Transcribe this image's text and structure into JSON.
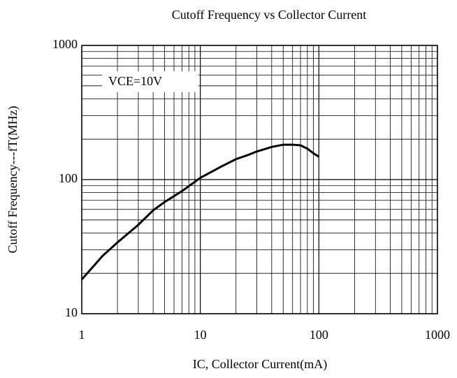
{
  "chart_data": {
    "type": "line",
    "title": "Cutoff Frequency vs Collector Current",
    "xlabel": "IC, Collector Current(mA)",
    "ylabel": "Cutoff Frequency---fT(MHz)",
    "annotation": "VCE=10V",
    "xscale": "log",
    "yscale": "log",
    "grid": true,
    "minor_grid": true,
    "xlim": [
      1,
      1000
    ],
    "ylim": [
      10,
      1000
    ],
    "xticks": [
      1,
      10,
      100,
      1000
    ],
    "yticks": [
      10,
      100,
      1000
    ],
    "series": [
      {
        "name": "fT",
        "color": "#000000",
        "x": [
          1,
          1.5,
          2,
          3,
          4,
          5,
          7,
          10,
          15,
          20,
          25,
          30,
          40,
          50,
          60,
          70,
          80,
          90,
          100
        ],
        "values": [
          18,
          27,
          34,
          46,
          59,
          68,
          82,
          103,
          125,
          142,
          152,
          162,
          175,
          182,
          182,
          180,
          170,
          157,
          148
        ]
      }
    ]
  }
}
